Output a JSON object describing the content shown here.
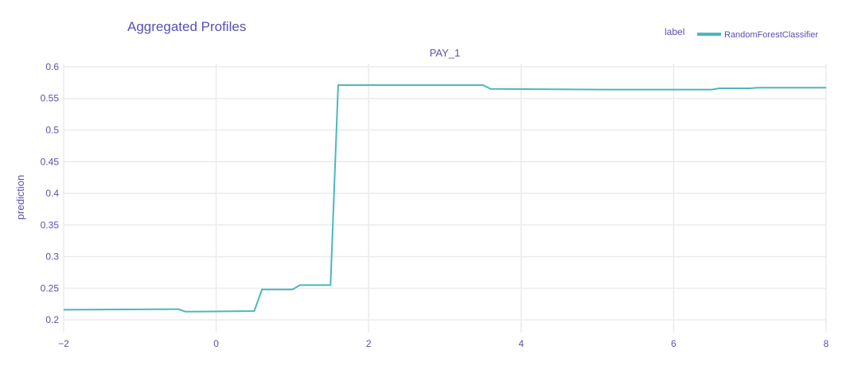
{
  "chart_data": {
    "type": "line",
    "title": "Aggregated Profiles",
    "subtitle": "PAY_1",
    "xlabel": "",
    "ylabel": "prediction",
    "xlim": [
      -2,
      8
    ],
    "ylim": [
      0.18,
      0.605
    ],
    "x_ticks": [
      -2,
      0,
      2,
      4,
      6,
      8
    ],
    "y_ticks": [
      0.2,
      0.25,
      0.3,
      0.35,
      0.4,
      0.45,
      0.5,
      0.55,
      0.6
    ],
    "y_tick_labels": [
      "0.2",
      "0.25",
      "0.3",
      "0.35",
      "0.4",
      "0.45",
      "0.5",
      "0.55",
      "0.6"
    ],
    "grid": true,
    "legend": {
      "title": "label",
      "placement": "top-right"
    },
    "series": [
      {
        "name": "RandomForestClassifier",
        "color": "#4ab8bd",
        "x": [
          -2,
          -0.5,
          -0.4,
          0.5,
          0.6,
          1.0,
          1.1,
          1.5,
          1.6,
          3.5,
          3.6,
          5.1,
          6.5,
          6.6,
          7.0,
          7.1,
          8.0
        ],
        "y": [
          0.216,
          0.217,
          0.213,
          0.214,
          0.248,
          0.248,
          0.255,
          0.255,
          0.571,
          0.571,
          0.565,
          0.564,
          0.564,
          0.566,
          0.566,
          0.567,
          0.567
        ]
      }
    ]
  }
}
